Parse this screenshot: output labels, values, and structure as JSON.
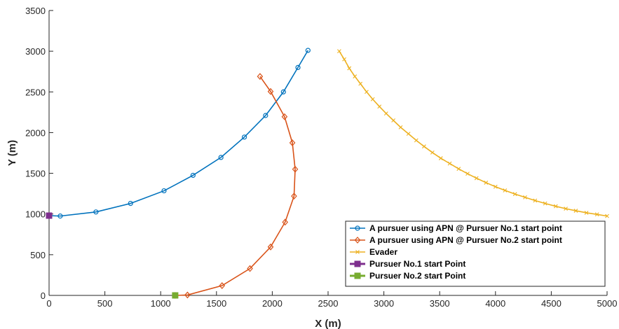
{
  "chart_data": {
    "type": "line",
    "xlabel": "X (m)",
    "ylabel": "Y (m)",
    "xlim": [
      0,
      5000
    ],
    "ylim": [
      0,
      3500
    ],
    "xticks": [
      0,
      500,
      1000,
      1500,
      2000,
      2500,
      3000,
      3500,
      4000,
      4500,
      5000
    ],
    "yticks": [
      0,
      500,
      1000,
      1500,
      2000,
      2500,
      3000,
      3500
    ],
    "grid": false,
    "legend_position": "bottom-right",
    "series": [
      {
        "name": "A pursuer using APN @ Pursuer No.1 start point",
        "color": "#0072BD",
        "marker": "circle",
        "x": [
          0,
          100,
          420,
          730,
          1030,
          1290,
          1540,
          1750,
          1940,
          2100,
          2230,
          2320
        ],
        "y": [
          980,
          975,
          1025,
          1130,
          1285,
          1475,
          1695,
          1945,
          2210,
          2500,
          2800,
          3010
        ]
      },
      {
        "name": "A pursuer using APN @ Pursuer No.2 start point",
        "color": "#D95319",
        "marker": "diamond",
        "x": [
          1130,
          1240,
          1550,
          1800,
          1985,
          2115,
          2195,
          2205,
          2180,
          2110,
          1985,
          1890
        ],
        "y": [
          0,
          5,
          120,
          330,
          595,
          900,
          1220,
          1550,
          1875,
          2195,
          2505,
          2690
        ]
      },
      {
        "name": "Evader",
        "color": "#EDB120",
        "marker": "x",
        "x": [
          2600,
          2645,
          2690,
          2740,
          2790,
          2845,
          2900,
          2960,
          3020,
          3085,
          3150,
          3220,
          3290,
          3360,
          3435,
          3510,
          3590,
          3670,
          3750,
          3830,
          3915,
          4000,
          4085,
          4175,
          4265,
          4355,
          4445,
          4540,
          4630,
          4720,
          4815,
          4910,
          5000
        ],
        "y": [
          3000,
          2900,
          2790,
          2690,
          2600,
          2500,
          2410,
          2320,
          2235,
          2150,
          2065,
          1985,
          1905,
          1830,
          1755,
          1685,
          1620,
          1555,
          1495,
          1440,
          1385,
          1335,
          1290,
          1245,
          1205,
          1165,
          1130,
          1095,
          1065,
          1040,
          1015,
          995,
          975
        ]
      },
      {
        "name": "Pursuer No.1 start Point",
        "color": "#7E2F8E",
        "marker": "square",
        "x": [
          0
        ],
        "y": [
          980
        ]
      },
      {
        "name": "Pursuer No.2 start Point",
        "color": "#77AC30",
        "marker": "square",
        "x": [
          1130
        ],
        "y": [
          0
        ]
      }
    ]
  }
}
